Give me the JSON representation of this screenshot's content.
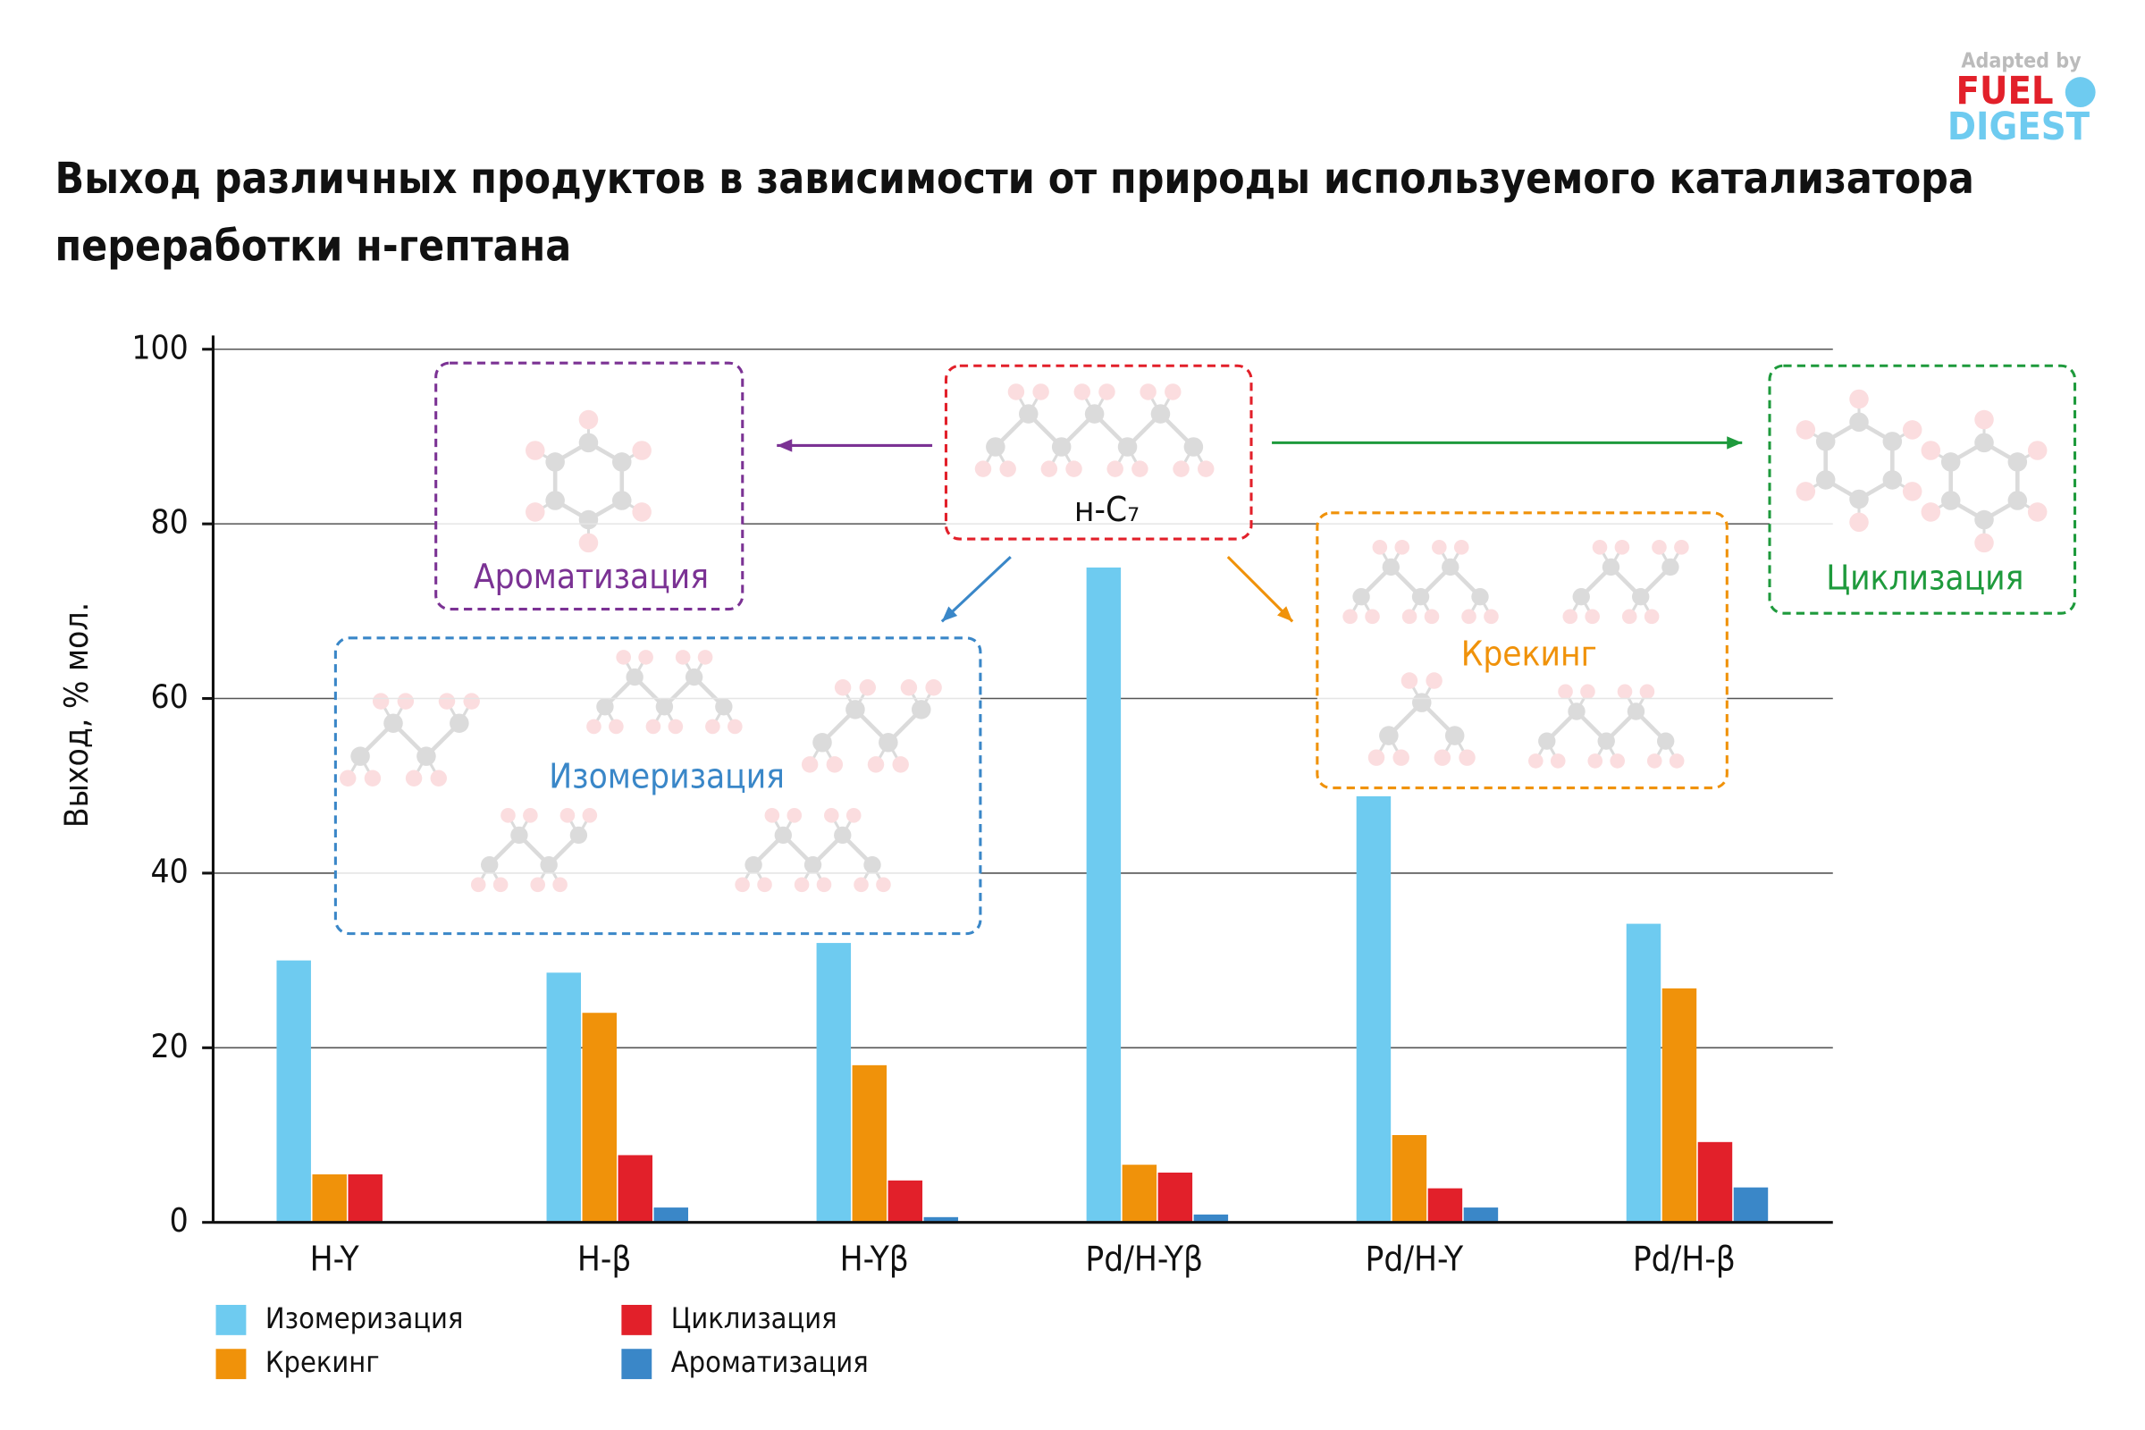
{
  "chart_data": {
    "type": "bar",
    "title": [
      "Выход различных продуктов в зависимости от природы используемого катализатора",
      "переработки н-гептана"
    ],
    "ylabel": "Выход, % мол.",
    "categories": [
      "H-Y",
      "H-β",
      "H-Yβ",
      "Pd/H-Yβ",
      "Pd/H-Y",
      "Pd/H-β"
    ],
    "series": [
      {
        "name": "Изомеризация",
        "color": "#6ecbf0",
        "values": [
          30,
          28.6,
          32,
          75,
          48.8,
          34.2
        ]
      },
      {
        "name": "Крекинг",
        "color": "#f0920a",
        "values": [
          5.5,
          24,
          18,
          6.6,
          10,
          26.8
        ]
      },
      {
        "name": "Циклизация",
        "color": "#e2202a",
        "values": [
          5.5,
          7.7,
          4.8,
          5.7,
          3.9,
          9.2
        ]
      },
      {
        "name": "Ароматизация",
        "color": "#3a87c8",
        "values": [
          0,
          1.7,
          0.6,
          0.9,
          1.7,
          4
        ]
      }
    ],
    "ylim": [
      0,
      100
    ],
    "yticks": [
      0,
      20,
      40,
      60,
      80,
      100
    ],
    "grid": true,
    "annotations": [
      "н-C₇",
      "Ароматизация",
      "Изомеризация",
      "Крекинг",
      "Циклизация"
    ],
    "logo": [
      "Adapted by",
      "FUEL",
      "DIGEST"
    ]
  }
}
